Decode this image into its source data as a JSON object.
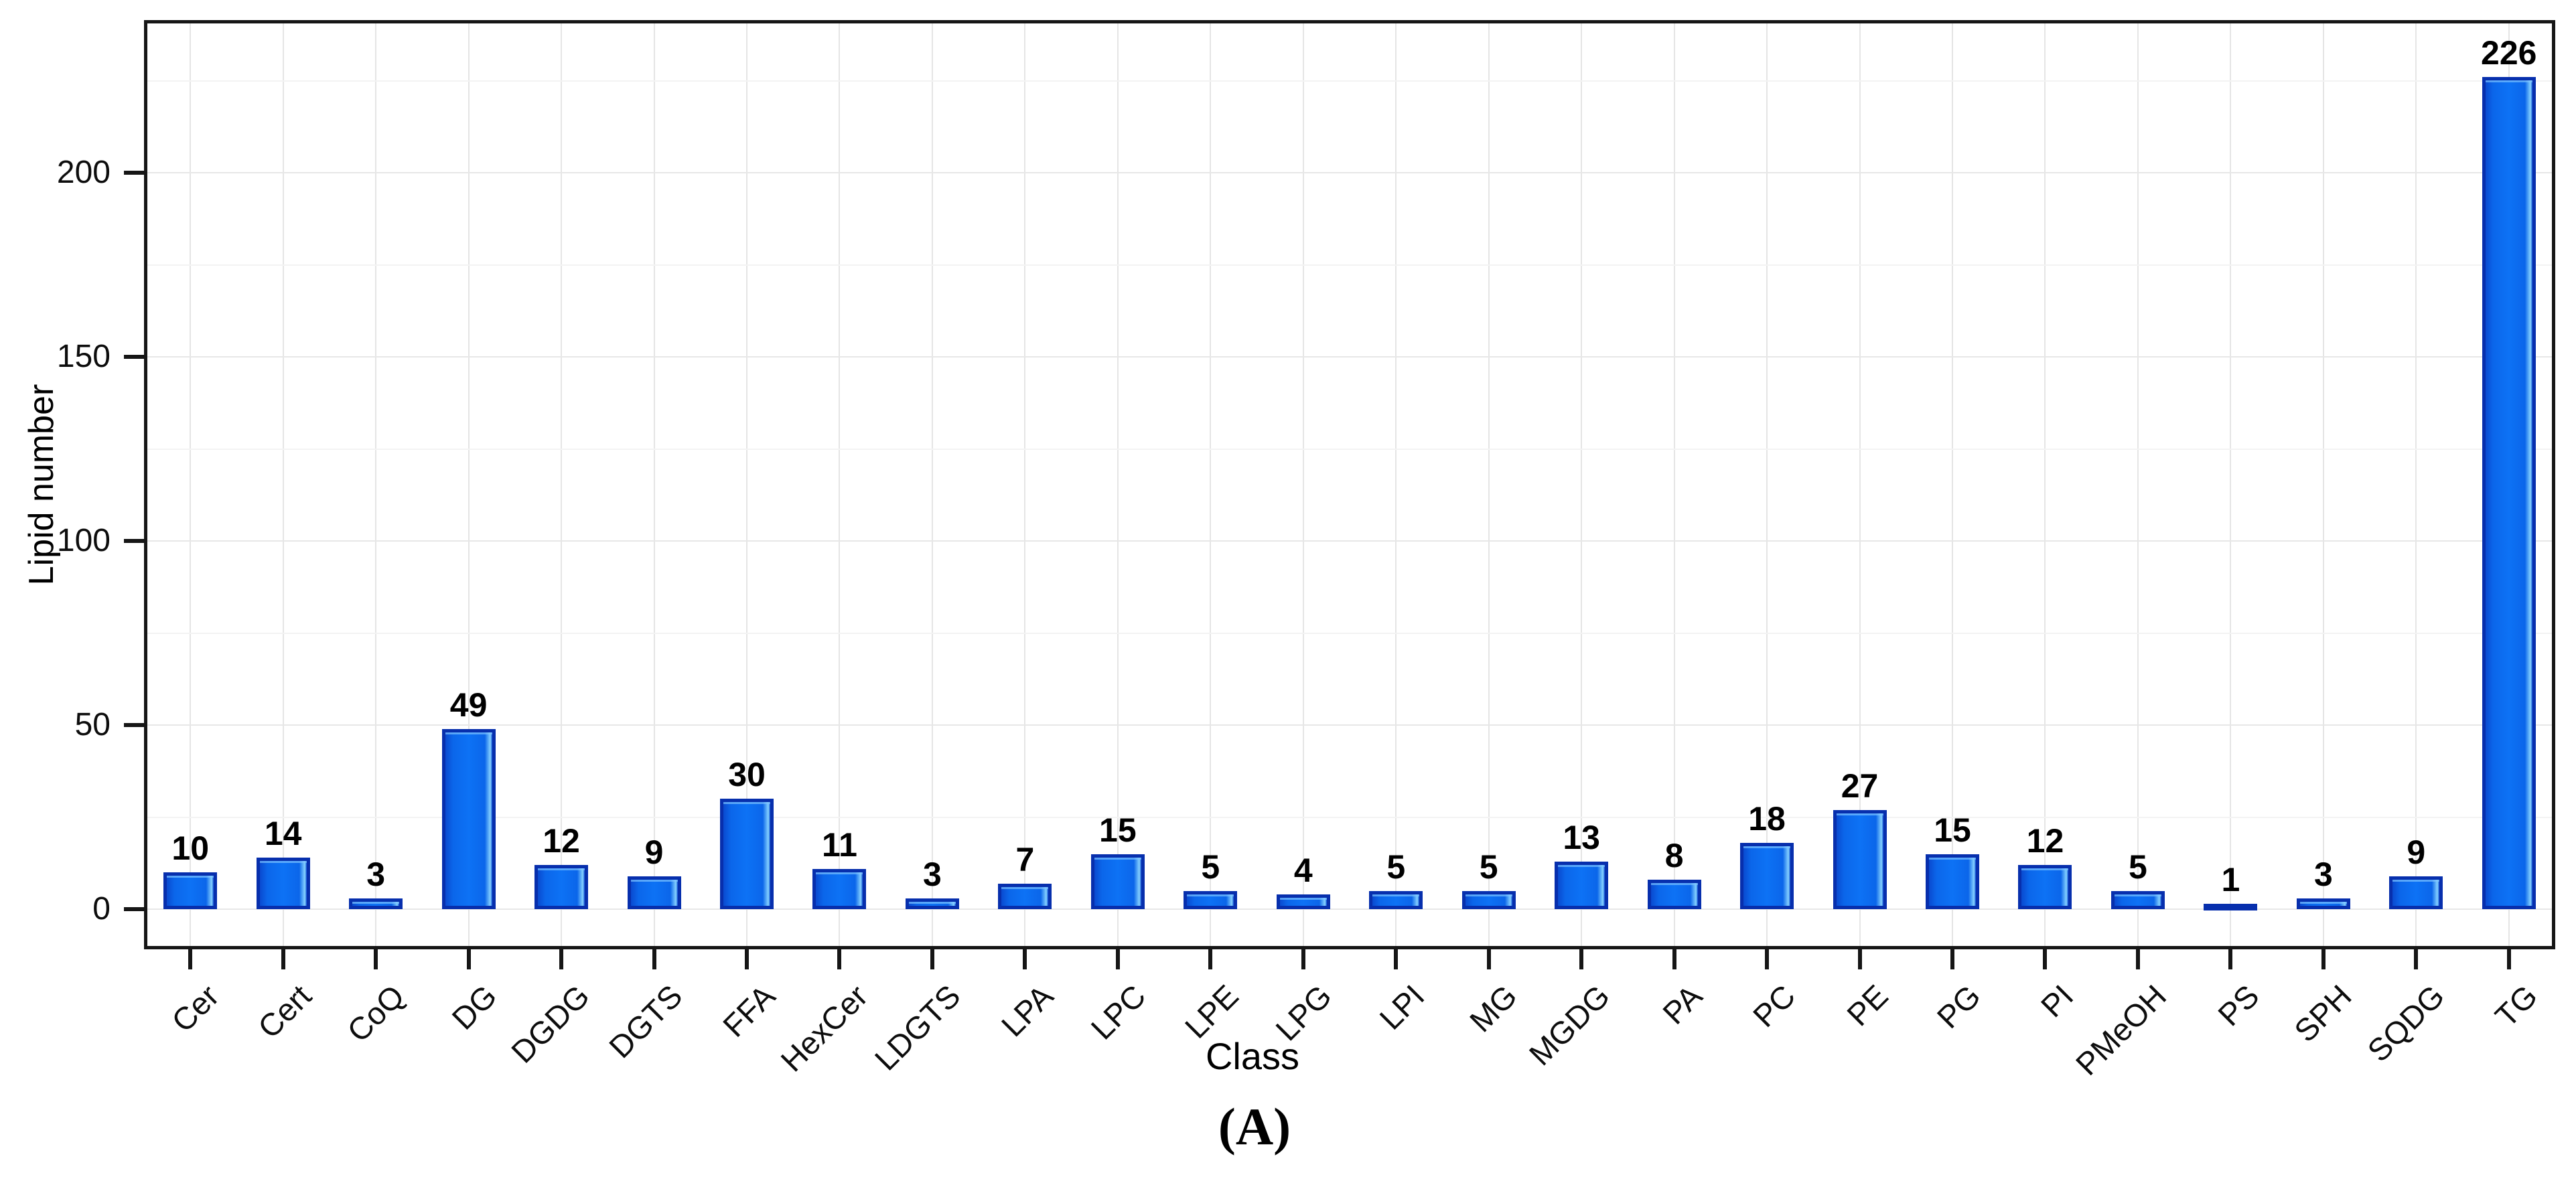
{
  "figure": {
    "caption": "(A)"
  },
  "chart_data": {
    "type": "bar",
    "title": "",
    "xlabel": "Class",
    "ylabel": "Lipid number",
    "categories": [
      "Cer",
      "Cert",
      "CoQ",
      "DG",
      "DGDG",
      "DGTS",
      "FFA",
      "HexCer",
      "LDGTS",
      "LPA",
      "LPC",
      "LPE",
      "LPG",
      "LPI",
      "MG",
      "MGDG",
      "PA",
      "PC",
      "PE",
      "PG",
      "PI",
      "PMeOH",
      "PS",
      "SPH",
      "SQDG",
      "TG"
    ],
    "values": [
      10,
      14,
      3,
      49,
      12,
      9,
      30,
      11,
      3,
      7,
      15,
      5,
      4,
      5,
      5,
      13,
      8,
      18,
      27,
      15,
      12,
      5,
      1,
      3,
      9,
      226
    ],
    "bar_value_labels": true,
    "ylim": [
      0,
      240
    ],
    "yticks": [
      0,
      50,
      100,
      150,
      200
    ],
    "minor_tick_step": 25,
    "grid": true,
    "legend": "none",
    "colors": {
      "bar_fill": "#0d72f5",
      "bar_border": "#072fad",
      "grid_major": "#e7e7e7",
      "grid_minor": "#f3f3f3",
      "axis": "#161616",
      "text": "#000000"
    }
  }
}
